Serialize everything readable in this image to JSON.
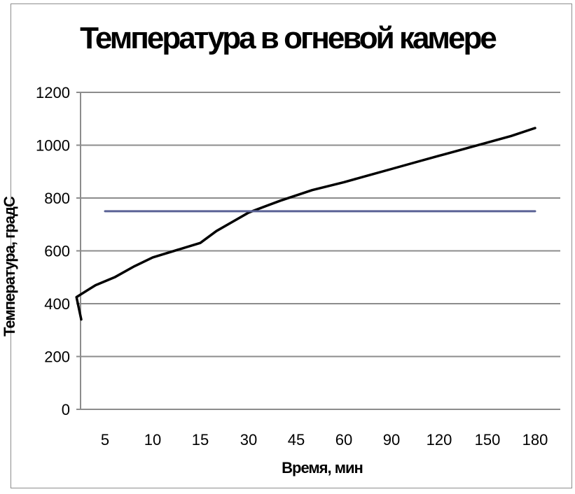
{
  "chart_data": {
    "type": "line",
    "title": "Температура в огневой камере",
    "xlabel": "Время, мин",
    "ylabel": "Температура, градС",
    "categories": [
      "5",
      "10",
      "15",
      "30",
      "45",
      "60",
      "90",
      "120",
      "150",
      "180"
    ],
    "ylim": [
      0,
      1200
    ],
    "yticks": [
      "0",
      "200",
      "400",
      "600",
      "800",
      "1000",
      "1200"
    ],
    "grid": true,
    "legend": "none",
    "series": [
      {
        "color": "#000000",
        "x": [
          0,
          2,
          4,
          6,
          8,
          10,
          15,
          20,
          25,
          30,
          40,
          50,
          60,
          75,
          90,
          105,
          120,
          135,
          150,
          165,
          180
        ],
        "values": [
          340,
          425,
          470,
          500,
          540,
          575,
          630,
          675,
          710,
          745,
          790,
          830,
          860,
          885,
          910,
          935,
          960,
          985,
          1010,
          1035,
          1065
        ]
      },
      {
        "color": "#5a6295",
        "x": [
          5,
          180
        ],
        "values": [
          750,
          750
        ]
      }
    ]
  }
}
